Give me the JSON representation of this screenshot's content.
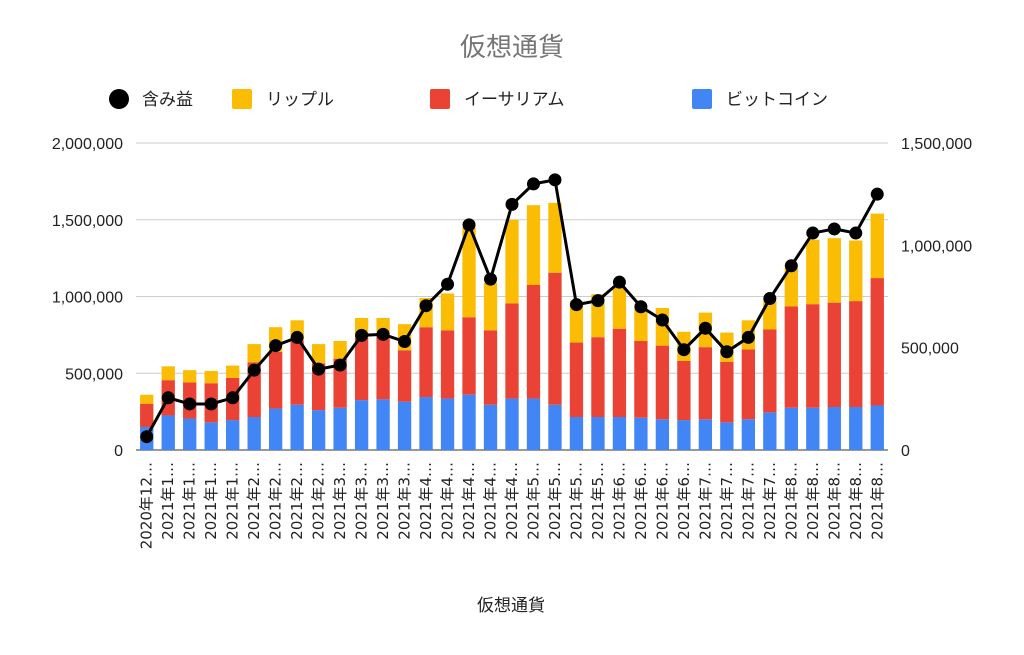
{
  "chart_data": {
    "type": "bar",
    "stacked": true,
    "title": "仮想通貨",
    "xlabel": "仮想通貨",
    "ylabel": "",
    "ylim": [
      0,
      2000000
    ],
    "y2lim": [
      0,
      1500000
    ],
    "grid": true,
    "legend_position": "top",
    "categories": [
      "2020年12…",
      "2021年1…",
      "2021年1…",
      "2021年1…",
      "2021年1…",
      "2021年2…",
      "2021年2…",
      "2021年2…",
      "2021年2…",
      "2021年3…",
      "2021年3…",
      "2021年3…",
      "2021年3…",
      "2021年4…",
      "2021年4…",
      "2021年4…",
      "2021年4…",
      "2021年4…",
      "2021年5…",
      "2021年5…",
      "2021年5…",
      "2021年5…",
      "2021年6…",
      "2021年6…",
      "2021年6…",
      "2021年6…",
      "2021年7…",
      "2021年7…",
      "2021年7…",
      "2021年7…",
      "2021年8…",
      "2021年8…",
      "2021年8…",
      "2021年8…",
      "2021年8…"
    ],
    "yticks": [
      "0",
      "500,000",
      "1,000,000",
      "1,500,000",
      "2,000,000"
    ],
    "y2ticks": [
      "0",
      "500,000",
      "1,000,000",
      "1,500,000"
    ],
    "series": [
      {
        "name": "ビットコイン",
        "color": "#4285F4",
        "axis": "left",
        "values": [
          150000,
          225000,
          205000,
          180000,
          195000,
          215000,
          270000,
          295000,
          260000,
          275000,
          325000,
          330000,
          315000,
          345000,
          335000,
          360000,
          295000,
          335000,
          335000,
          295000,
          215000,
          215000,
          215000,
          210000,
          200000,
          195000,
          200000,
          180000,
          200000,
          245000,
          275000,
          275000,
          280000,
          280000,
          290000
        ]
      },
      {
        "name": "イーサリアム",
        "color": "#EA4335",
        "axis": "left",
        "values": [
          150000,
          230000,
          235000,
          255000,
          275000,
          355000,
          370000,
          415000,
          305000,
          320000,
          405000,
          415000,
          335000,
          455000,
          445000,
          505000,
          485000,
          620000,
          740000,
          860000,
          485000,
          520000,
          575000,
          500000,
          480000,
          385000,
          470000,
          395000,
          455000,
          540000,
          660000,
          675000,
          680000,
          690000,
          830000
        ]
      },
      {
        "name": "リップル",
        "color": "#FBBC04",
        "axis": "left",
        "values": [
          60000,
          90000,
          80000,
          80000,
          80000,
          120000,
          160000,
          135000,
          125000,
          115000,
          130000,
          115000,
          170000,
          190000,
          240000,
          585000,
          310000,
          545000,
          520000,
          455000,
          270000,
          280000,
          275000,
          210000,
          245000,
          190000,
          225000,
          190000,
          190000,
          185000,
          250000,
          420000,
          420000,
          395000,
          420000
        ]
      },
      {
        "name": "含み益",
        "color": "#000000",
        "type": "line",
        "axis": "right",
        "values": [
          65000,
          255000,
          225000,
          225000,
          255000,
          390000,
          510000,
          550000,
          395000,
          415000,
          560000,
          565000,
          530000,
          705000,
          810000,
          1100000,
          835000,
          1200000,
          1300000,
          1320000,
          710000,
          730000,
          820000,
          700000,
          635000,
          490000,
          595000,
          480000,
          550000,
          740000,
          900000,
          1060000,
          1080000,
          1060000,
          1250000
        ]
      }
    ],
    "legend_order": [
      "含み益",
      "リップル",
      "イーサリアム",
      "ビットコイン"
    ]
  }
}
